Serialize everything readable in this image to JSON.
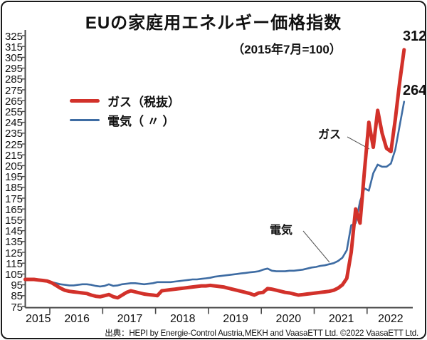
{
  "frame": {
    "title": "EUの家庭用エネルギー価格指数",
    "subtitle": "（2015年7月=100）",
    "source": "出典：HEPI by Energie-Control Austria,MEKH and VaasaETT Ltd. ©2022 VaasaETT Ltd."
  },
  "legend": {
    "gas": {
      "label": "ガス（税抜）",
      "color": "#d2312a"
    },
    "elec": {
      "label": "電気（ 〃 ）",
      "color": "#3e6ca3"
    }
  },
  "annotations": {
    "gas_label": "ガス",
    "elec_label": "電気",
    "gas_end_value": "312",
    "elec_end_value": "264"
  },
  "chart_data": {
    "type": "line",
    "title": "EUの家庭用エネルギー価格指数",
    "subtitle": "(2015年7月=100)",
    "x_unit": "month",
    "x_start": "2015-07",
    "x_end": "2022-09",
    "x_tick_years": [
      "2015",
      "2016",
      "2017",
      "2018",
      "2019",
      "2020",
      "2021",
      "2022"
    ],
    "ylim": [
      75,
      325
    ],
    "ytick_step": 10,
    "grid": false,
    "legend_position": "upper-left",
    "series": [
      {
        "name": "ガス（税抜）",
        "color": "#d2312a",
        "end_label": 312,
        "values": [
          100,
          100,
          100,
          99.5,
          99,
          98.5,
          97,
          94.5,
          92,
          90,
          89,
          88.5,
          88,
          87.5,
          87,
          85.5,
          84.5,
          84,
          85,
          86,
          84,
          83,
          85.5,
          88,
          89.5,
          88.5,
          87.5,
          86.5,
          86,
          85.5,
          85,
          89.5,
          90,
          90.5,
          91,
          91.5,
          92,
          92.5,
          93,
          93.5,
          94,
          94,
          94.5,
          94,
          93.5,
          93,
          92,
          91,
          90,
          89,
          88,
          87,
          85.5,
          87.5,
          88,
          91.5,
          91,
          90,
          89,
          88,
          87.5,
          86.5,
          85.5,
          86,
          86.5,
          87,
          87.5,
          88,
          88.5,
          89,
          90,
          92,
          95,
          101,
          125,
          165,
          152,
          200,
          245,
          222,
          256,
          235,
          221,
          218,
          248,
          282,
          312
        ]
      },
      {
        "name": "電気（ 〃 ）",
        "color": "#3e6ca3",
        "end_label": 264,
        "values": [
          100,
          100,
          99.5,
          99,
          99,
          98.5,
          97.5,
          96.5,
          95.5,
          95,
          94.5,
          94.5,
          95,
          95.5,
          95.5,
          95,
          94,
          93.5,
          94,
          95.5,
          94,
          94.5,
          95.5,
          96,
          96.5,
          96.5,
          96,
          95.5,
          96,
          96.5,
          97.5,
          97.5,
          97.5,
          97.5,
          98,
          98.5,
          99,
          99.5,
          100,
          100,
          100.5,
          101,
          101.5,
          102.5,
          103,
          103.5,
          104,
          104.5,
          105,
          105.5,
          106,
          106.5,
          107,
          107.5,
          109,
          110,
          108,
          107.5,
          107.5,
          107.5,
          108,
          108,
          108.5,
          109,
          110,
          111,
          111.5,
          112.5,
          113,
          114,
          115,
          117,
          120,
          127,
          150,
          152,
          172,
          184,
          182,
          198,
          206,
          204,
          204,
          207,
          220,
          242,
          264
        ]
      }
    ]
  }
}
